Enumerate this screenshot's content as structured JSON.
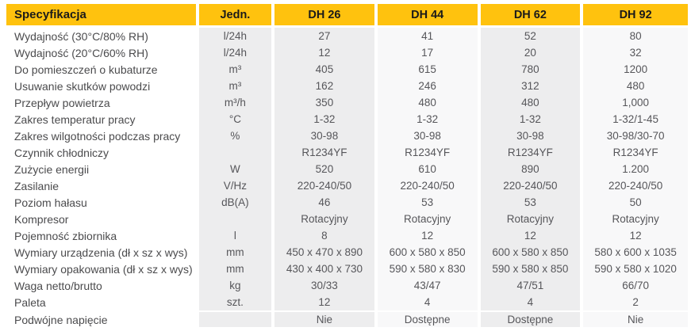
{
  "colors": {
    "header_bg": "#ffc20e",
    "header_text": "#1a1a1a",
    "column_gray": "#ededee",
    "column_light": "#f8f8f9",
    "label_text": "#4b4b4d",
    "value_text": "#56565a"
  },
  "table": {
    "header": {
      "spec_label": "Specyfikacja",
      "unit_label": "Jedn.",
      "models": [
        "DH 26",
        "DH 44",
        "DH 62",
        "DH 92"
      ]
    },
    "column_shading": [
      "gray",
      "light",
      "gray",
      "light"
    ],
    "rows": [
      {
        "label": "Wydajność (30°C/80% RH)",
        "unit": "l/24h",
        "values": [
          "27",
          "41",
          "52",
          "80"
        ]
      },
      {
        "label": "Wydajność (20°C/60% RH)",
        "unit": "l/24h",
        "values": [
          "12",
          "17",
          "20",
          "32"
        ]
      },
      {
        "label": "Do pomieszczeń o kubaturze",
        "unit": "m³",
        "values": [
          "405",
          "615",
          "780",
          "1200"
        ]
      },
      {
        "label": "Usuwanie skutków powodzi",
        "unit": "m³",
        "values": [
          "162",
          "246",
          "312",
          "480"
        ]
      },
      {
        "label": "Przepływ powietrza",
        "unit": "m³/h",
        "values": [
          "350",
          "480",
          "480",
          "1,000"
        ]
      },
      {
        "label": "Zakres temperatur pracy",
        "unit": "°C",
        "values": [
          "1-32",
          "1-32",
          "1-32",
          "1-32/1-45"
        ]
      },
      {
        "label": "Zakres wilgotności podczas pracy",
        "unit": "%",
        "values": [
          "30-98",
          "30-98",
          "30-98",
          "30-98/30-70"
        ]
      },
      {
        "label": "Czynnik chłodniczy",
        "unit": "",
        "values": [
          "R1234YF",
          "R1234YF",
          "R1234YF",
          "R1234YF"
        ]
      },
      {
        "label": "Zużycie energii",
        "unit": "W",
        "values": [
          "520",
          "610",
          "890",
          "1.200"
        ]
      },
      {
        "label": "Zasilanie",
        "unit": "V/Hz",
        "values": [
          "220-240/50",
          "220-240/50",
          "220-240/50",
          "220-240/50"
        ]
      },
      {
        "label": "Poziom hałasu",
        "unit": "dB(A)",
        "values": [
          "46",
          "53",
          "53",
          "50"
        ]
      },
      {
        "label": "Kompresor",
        "unit": "",
        "values": [
          "Rotacyjny",
          "Rotacyjny",
          "Rotacyjny",
          "Rotacyjny"
        ]
      },
      {
        "label": "Pojemność zbiornika",
        "unit": "l",
        "values": [
          "8",
          "12",
          "12",
          "12"
        ]
      },
      {
        "label": "Wymiary urządzenia (dł x sz x wys)",
        "unit": "mm",
        "values": [
          "450 x 470 x 890",
          "600 x 580 x 850",
          "600 x 580 x 850",
          "580 x 600 x 1035"
        ]
      },
      {
        "label": "Wymiary opakowania (dł x sz x wys)",
        "unit": "mm",
        "values": [
          "430 x 400 x 730",
          "590 x 580 x 830",
          "590 x 580 x 850",
          "590 x 580 x 1020"
        ]
      },
      {
        "label": "Waga netto/brutto",
        "unit": "kg",
        "values": [
          "30/33",
          "43/47",
          "47/51",
          "66/70"
        ]
      },
      {
        "label": "Paleta",
        "unit": "szt.",
        "values": [
          "12",
          "4",
          "4",
          "2"
        ]
      },
      {
        "label": "Podwójne napięcie",
        "unit": "",
        "values": [
          "Nie",
          "Dostępne",
          "Dostępne",
          "Nie"
        ]
      }
    ]
  }
}
